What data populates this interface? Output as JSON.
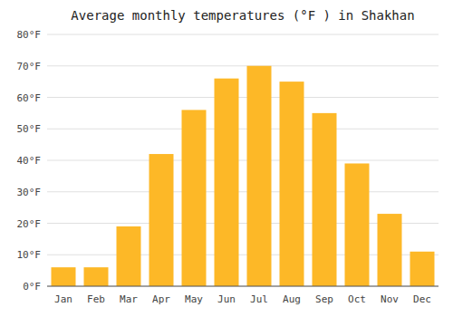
{
  "chart_data": {
    "type": "bar",
    "title": "Average monthly temperatures (°F ) in Shakhan",
    "categories": [
      "Jan",
      "Feb",
      "Mar",
      "Apr",
      "May",
      "Jun",
      "Jul",
      "Aug",
      "Sep",
      "Oct",
      "Nov",
      "Dec"
    ],
    "values": [
      6,
      6,
      19,
      42,
      56,
      66,
      70,
      65,
      55,
      39,
      23,
      11
    ],
    "color": "#FDB827",
    "ylim": [
      0,
      80
    ],
    "yticks": [
      {
        "value": 0,
        "label": "0°F"
      },
      {
        "value": 10,
        "label": "10°F"
      },
      {
        "value": 20,
        "label": "20°F"
      },
      {
        "value": 30,
        "label": "30°F"
      },
      {
        "value": 40,
        "label": "40°F"
      },
      {
        "value": 50,
        "label": "50°F"
      },
      {
        "value": 60,
        "label": "60°F"
      },
      {
        "value": 70,
        "label": "70°F"
      },
      {
        "value": 80,
        "label": "80°F"
      }
    ],
    "grid": true
  }
}
